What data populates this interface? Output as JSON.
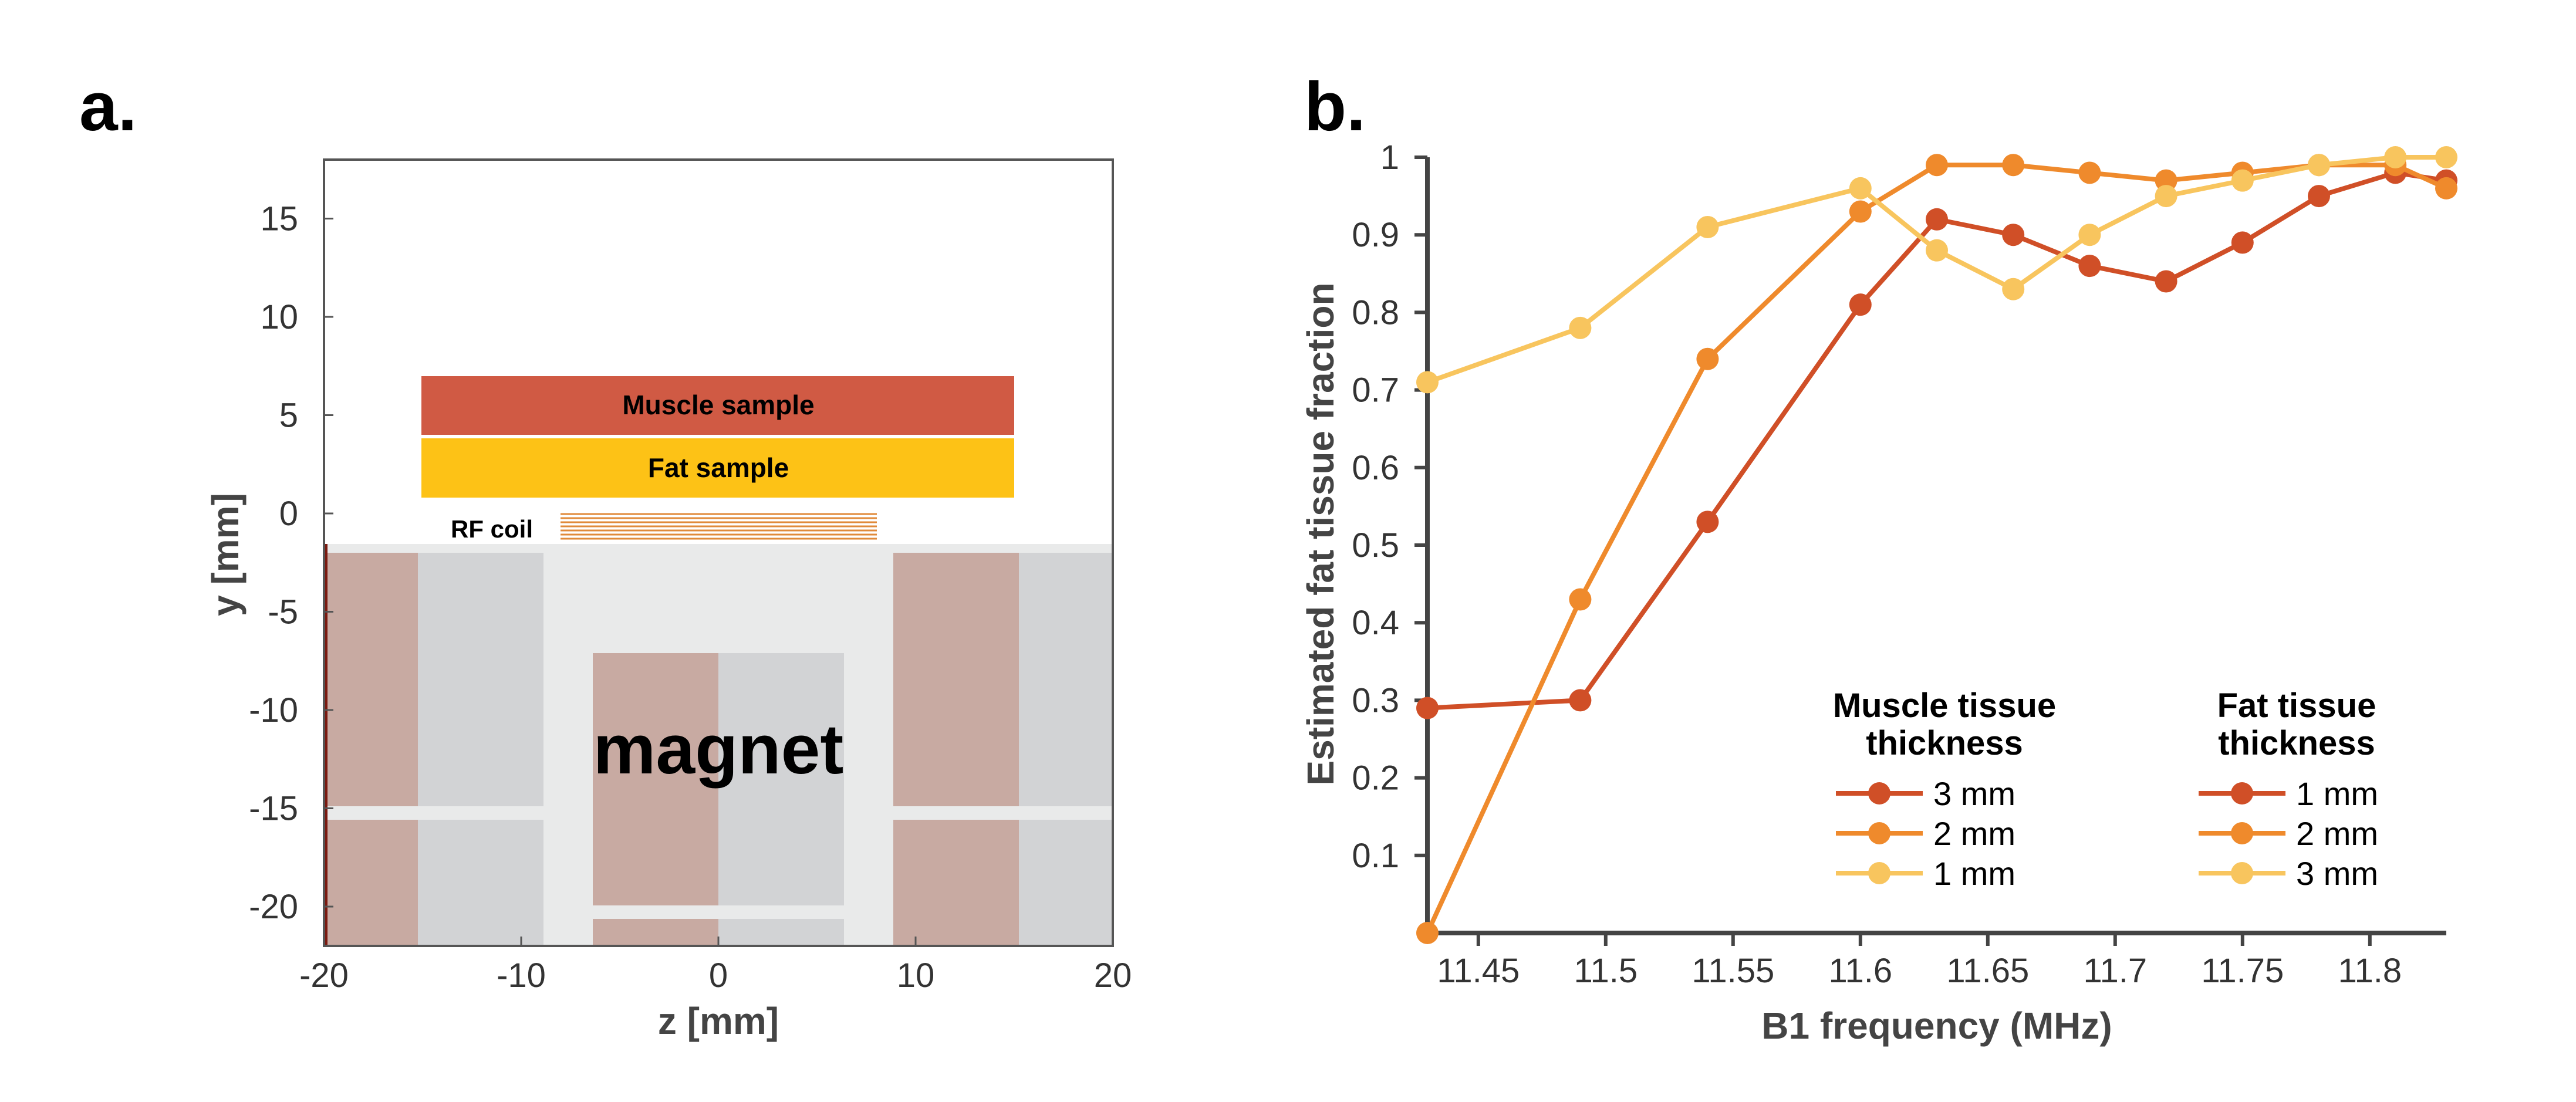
{
  "panel_a": {
    "label": "a.",
    "xlabel": "z [mm]",
    "ylabel": "y [mm]",
    "xlim": [
      -20,
      20
    ],
    "ylim": [
      -22,
      18
    ],
    "xticks": [
      -20,
      -10,
      0,
      10,
      20
    ],
    "yticks": [
      15,
      10,
      5,
      0,
      -5,
      -10,
      -15,
      -20
    ],
    "muscle_label": "Muscle sample",
    "fat_label": "Fat sample",
    "coil_label": "RF coil",
    "magnet_label": "magnet",
    "colors": {
      "muscle": "#d05a44",
      "fat": "#fdc216",
      "coil": "#e08a3a",
      "magnet_brown": "#c8aaa2",
      "magnet_gray": "#d2d3d5",
      "magnet_bg": "#e9eaea"
    }
  },
  "chart_data": {
    "type": "line",
    "panel_label": "b.",
    "title": "",
    "xlabel": "B1 frequency (MHz)",
    "ylabel": "Estimated fat tissue fraction",
    "xlim": [
      11.43,
      11.83
    ],
    "ylim": [
      0,
      1
    ],
    "xticks": [
      "11.45",
      "11.5",
      "11.55",
      "11.6",
      "11.65",
      "11.7",
      "11.75",
      "11.8"
    ],
    "yticks": [
      "0.1",
      "0.2",
      "0.3",
      "0.4",
      "0.5",
      "0.6",
      "0.7",
      "0.8",
      "0.9",
      "1"
    ],
    "x": [
      11.43,
      11.49,
      11.54,
      11.6,
      11.63,
      11.66,
      11.69,
      11.72,
      11.75,
      11.78,
      11.81,
      11.83
    ],
    "series": [
      {
        "name": "3 mm muscle / 1 mm fat",
        "color": "#d04f27",
        "values": [
          0.29,
          0.3,
          0.53,
          0.81,
          0.92,
          0.9,
          0.86,
          0.84,
          0.89,
          0.95,
          0.98,
          0.97
        ]
      },
      {
        "name": "2 mm muscle / 2 mm fat",
        "color": "#ef8a2c",
        "values": [
          0.0,
          0.43,
          0.74,
          0.93,
          0.99,
          0.99,
          0.98,
          0.97,
          0.98,
          0.99,
          0.99,
          0.96
        ]
      },
      {
        "name": "1 mm muscle / 3 mm fat",
        "color": "#f8c55e",
        "values": [
          0.71,
          0.78,
          0.91,
          0.96,
          0.88,
          0.83,
          0.9,
          0.95,
          0.97,
          0.99,
          1.0,
          1.0
        ]
      }
    ],
    "legend": {
      "muscle_title_1": "Muscle tissue",
      "muscle_title_2": "thickness",
      "fat_title_1": "Fat tissue",
      "fat_title_2": "thickness",
      "muscle_entries": [
        "3 mm",
        "2 mm",
        "1 mm"
      ],
      "fat_entries": [
        "1 mm",
        "2 mm",
        "3 mm"
      ]
    }
  }
}
